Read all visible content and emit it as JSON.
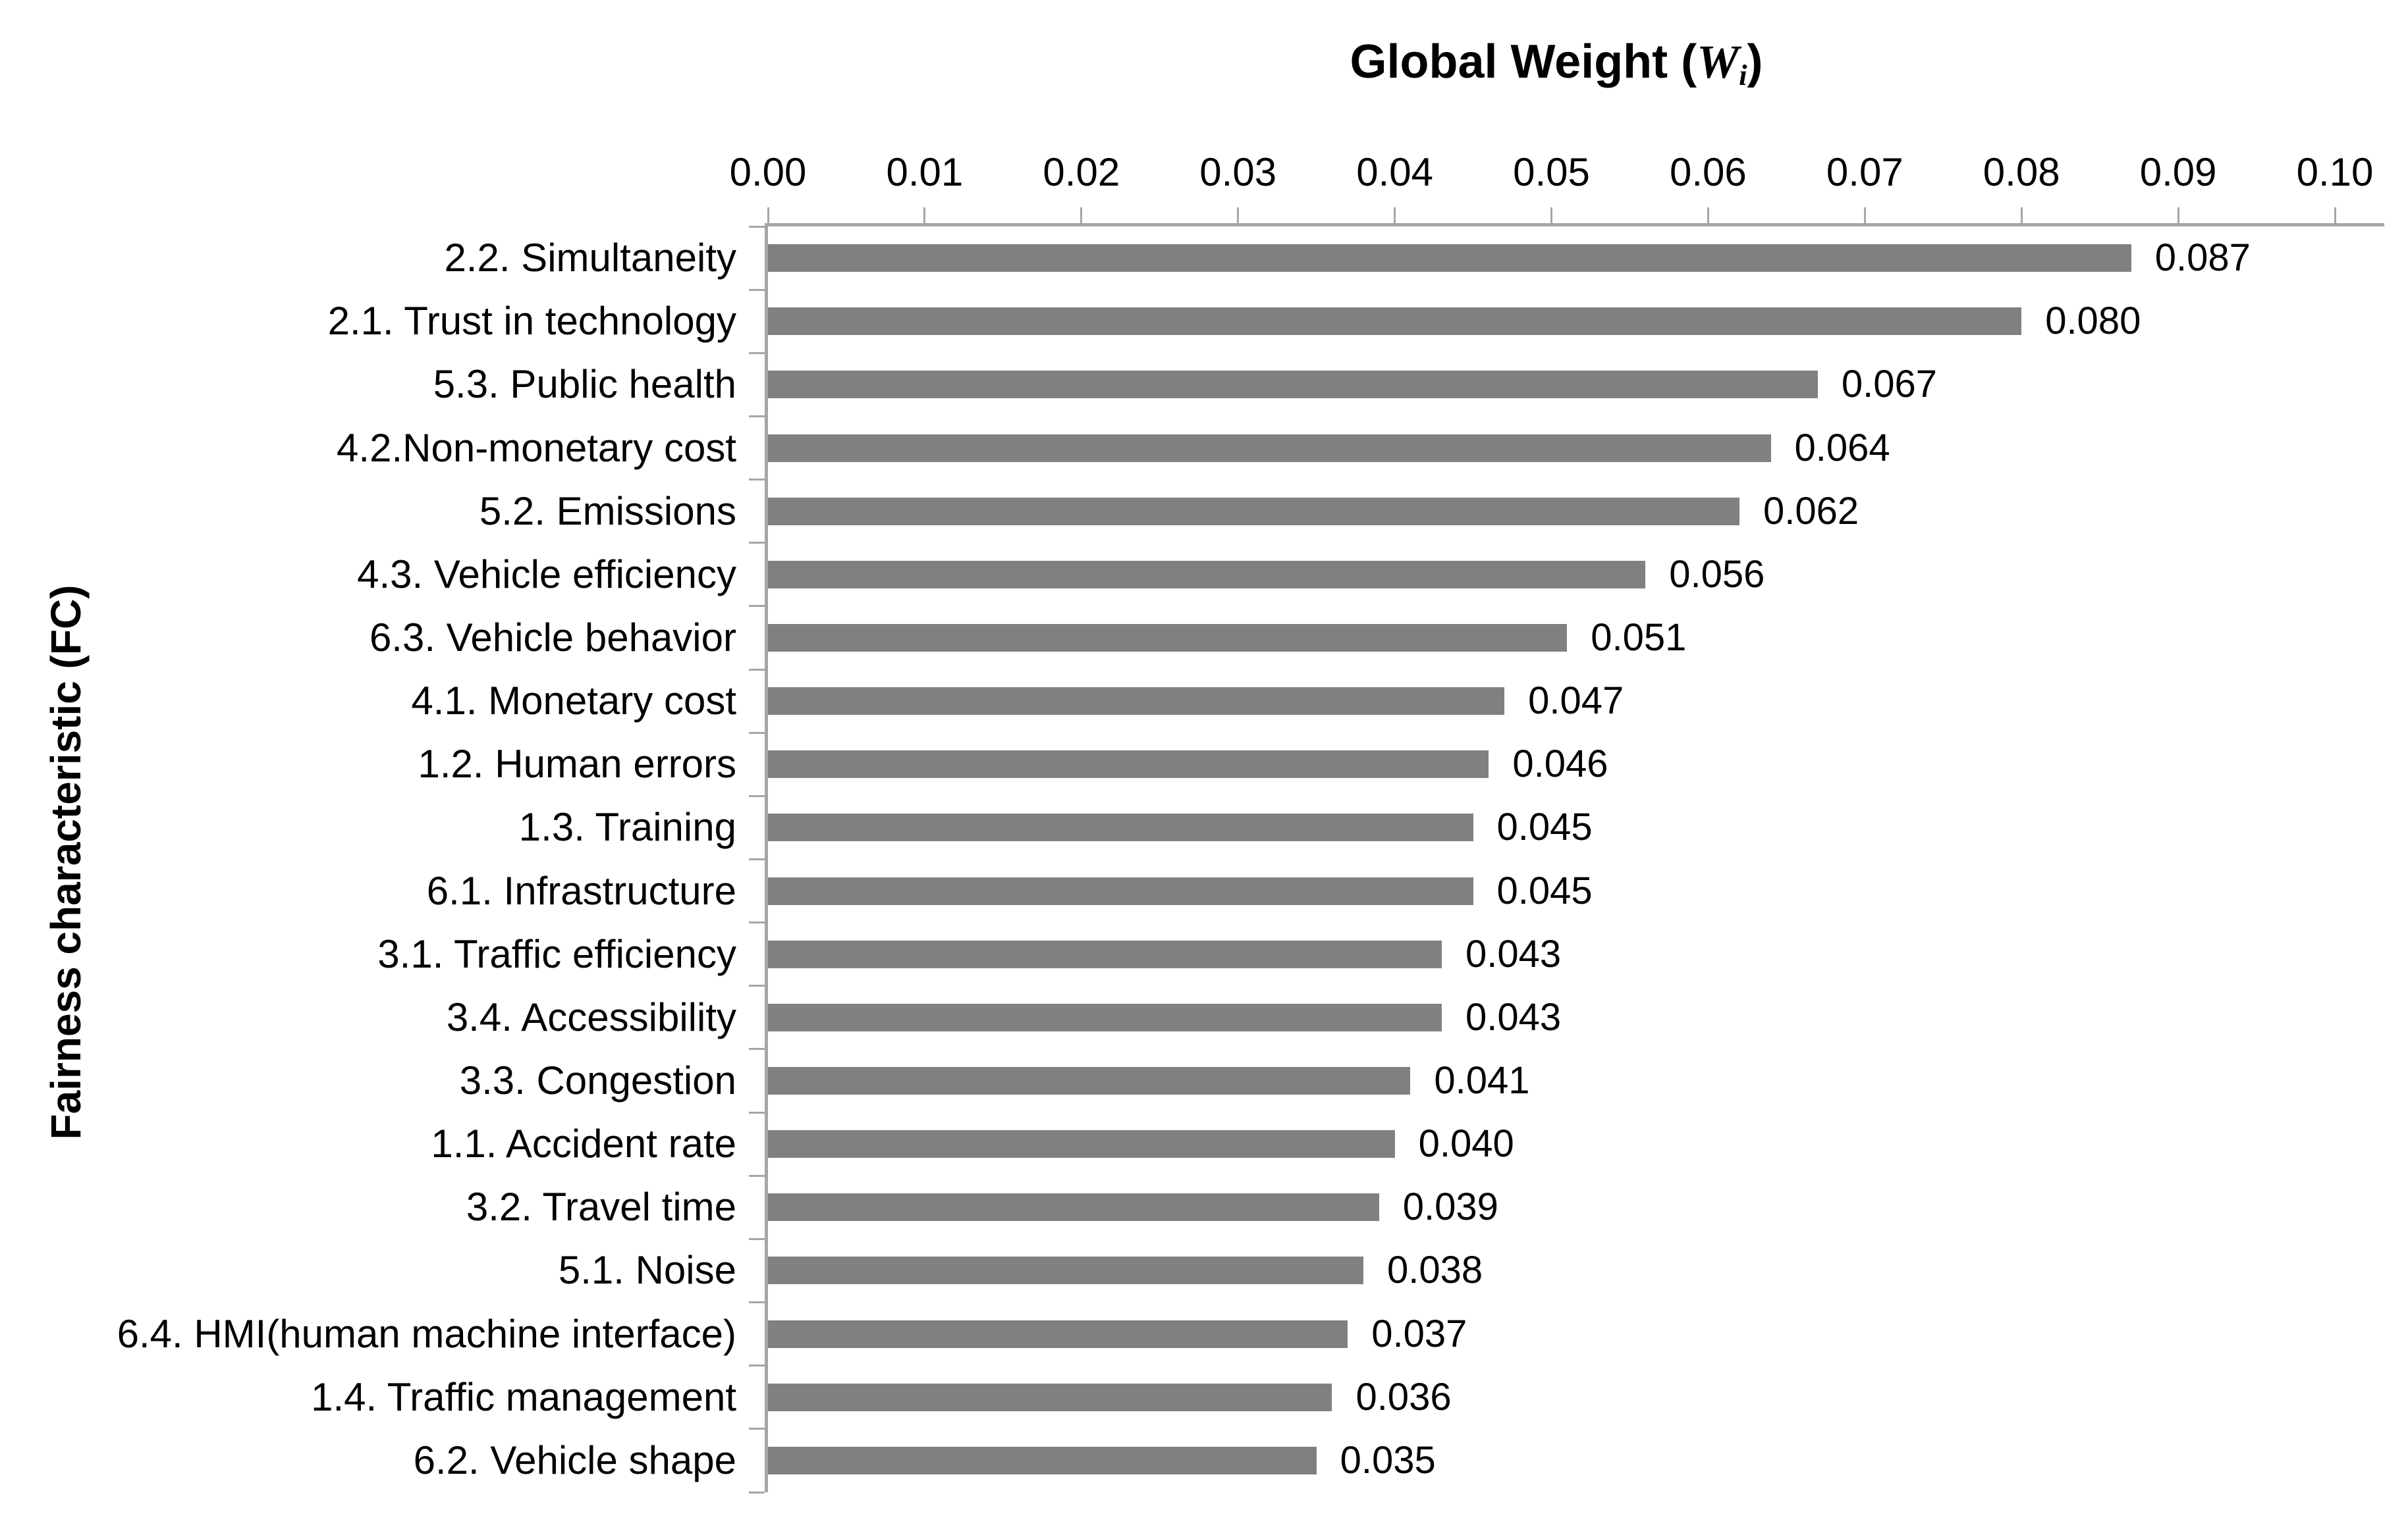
{
  "chart_data": {
    "type": "bar",
    "orientation": "horizontal",
    "title": {
      "prefix": "Global Weight (",
      "symbol": "W",
      "subscript": "i",
      "suffix": ")"
    },
    "ylabel": "Fairness characteristic (FC)",
    "xlabel": "",
    "categories": [
      "2.2. Simultaneity",
      "2.1. Trust in technology",
      "5.3. Public health",
      "4.2.Non-monetary cost",
      "5.2. Emissions",
      "4.3. Vehicle efficiency",
      "6.3. Vehicle behavior",
      "4.1. Monetary cost",
      "1.2. Human errors",
      "1.3. Training",
      "6.1. Infrastructure",
      "3.1. Traffic efficiency",
      "3.4. Accessibility",
      "3.3. Congestion",
      "1.1. Accident rate",
      "3.2. Travel time",
      "5.1. Noise",
      "6.4. HMI(human machine interface)",
      "1.4. Traffic management",
      "6.2. Vehicle shape"
    ],
    "values": [
      0.087,
      0.08,
      0.067,
      0.064,
      0.062,
      0.056,
      0.051,
      0.047,
      0.046,
      0.045,
      0.045,
      0.043,
      0.043,
      0.041,
      0.04,
      0.039,
      0.038,
      0.037,
      0.036,
      0.035
    ],
    "value_labels": [
      "0.087",
      "0.080",
      "0.067",
      "0.064",
      "0.062",
      "0.056",
      "0.051",
      "0.047",
      "0.046",
      "0.045",
      "0.045",
      "0.043",
      "0.043",
      "0.041",
      "0.040",
      "0.039",
      "0.038",
      "0.037",
      "0.036",
      "0.035"
    ],
    "x_tick_labels": [
      "0.00",
      "0.01",
      "0.02",
      "0.03",
      "0.04",
      "0.05",
      "0.06",
      "0.07",
      "0.08",
      "0.09",
      "0.10"
    ],
    "xlim": [
      0.0,
      0.1
    ],
    "x_tick_step": 0.01,
    "grid": "off",
    "legend": "none",
    "data_labels": "outside-end",
    "colors": {
      "bar": "#808080",
      "axis": "#a6a6a6",
      "text": "#000000",
      "background": "#ffffff"
    }
  }
}
